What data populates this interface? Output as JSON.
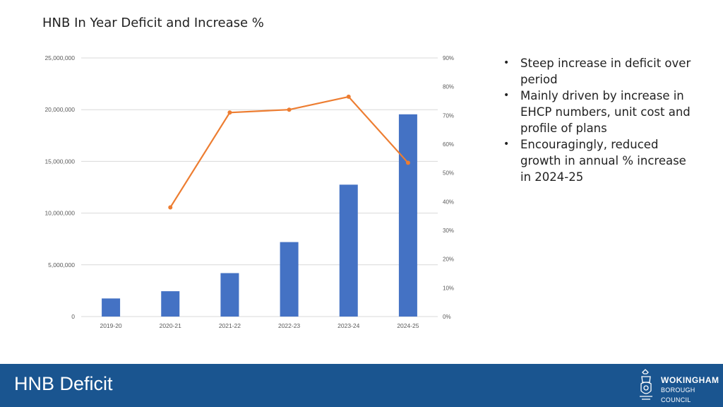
{
  "page": {
    "title": "HNB In Year Deficit and Increase %",
    "footer_title": "HNB Deficit",
    "logo_name": "WOKINGHAM",
    "logo_sub": "BOROUGH COUNCIL"
  },
  "bullets": [
    "Steep increase in deficit over period",
    "Mainly driven by increase in EHCP numbers, unit cost and profile of plans",
    "Encouragingly, reduced growth in annual % increase in 2024-25"
  ],
  "chart_data": {
    "type": "bar",
    "title": "HNB In Year Deficit and Increase %",
    "categories": [
      "2019-20",
      "2020-21",
      "2021-22",
      "2022-23",
      "2023-24",
      "2024-25"
    ],
    "series": [
      {
        "type": "bar",
        "axis": "left",
        "color": "#4472c4",
        "values": [
          1750000,
          2450000,
          4200000,
          7200000,
          12750000,
          19550000
        ]
      },
      {
        "type": "line",
        "axis": "right",
        "color": "#ed7d31",
        "values": [
          null,
          0.38,
          0.71,
          0.72,
          0.765,
          0.535
        ]
      }
    ],
    "y_left": {
      "min": 0,
      "max": 25000000,
      "ticks": [
        0,
        5000000,
        10000000,
        15000000,
        20000000,
        25000000
      ],
      "tick_labels": [
        "0",
        "5,000,000",
        "10,000,000",
        "15,000,000",
        "20,000,000",
        "25,000,000"
      ]
    },
    "y_right": {
      "min": 0,
      "max": 0.9,
      "ticks": [
        0,
        0.1,
        0.2,
        0.3,
        0.4,
        0.5,
        0.6,
        0.7,
        0.8,
        0.9
      ],
      "tick_labels": [
        "0%",
        "10%",
        "20%",
        "30%",
        "40%",
        "50%",
        "60%",
        "70%",
        "80%",
        "90%"
      ]
    },
    "grid": true,
    "colors": {
      "bar": "#4472c4",
      "line": "#ed7d31",
      "grid": "#d9d9d9",
      "axis_text": "#595959"
    }
  }
}
